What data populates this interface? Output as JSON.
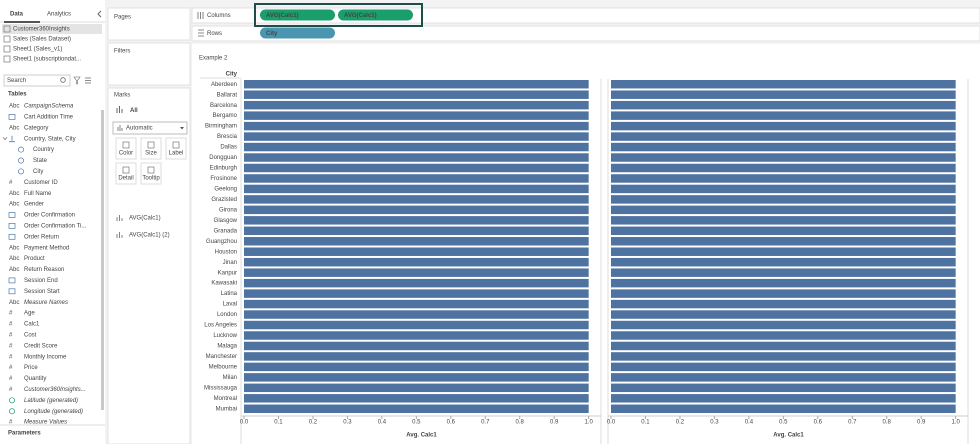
{
  "sidebar": {
    "tabs": [
      "Data",
      "Analytics"
    ],
    "sources": [
      "Customer360Insights",
      "Sales (Sales Dataset)",
      "Sheet1 (Sales_v1)",
      "Sheet1 (subscriptiondat..."
    ],
    "search": "Search",
    "tables_title": "Tables",
    "fields": [
      {
        "icon": "Abc",
        "name": "CampaignSchema",
        "italic": true
      },
      {
        "kind": "date",
        "name": "Cart Addition Time"
      },
      {
        "icon": "Abc",
        "name": "Category"
      },
      {
        "kind": "hier",
        "name": "Country, State, City"
      },
      {
        "kind": "geo",
        "name": "Country",
        "indent": true
      },
      {
        "kind": "geo",
        "name": "State",
        "indent": true
      },
      {
        "kind": "geo",
        "name": "City",
        "indent": true
      },
      {
        "icon": "#",
        "name": "Customer ID"
      },
      {
        "icon": "Abc",
        "name": "Full Name"
      },
      {
        "icon": "Abc",
        "name": "Gender"
      },
      {
        "kind": "date",
        "name": "Order Confirmation"
      },
      {
        "kind": "date",
        "name": "Order Confirmation Ti..."
      },
      {
        "kind": "date",
        "name": "Order Return"
      },
      {
        "icon": "Abc",
        "name": "Payment Method"
      },
      {
        "icon": "Abc",
        "name": "Product"
      },
      {
        "icon": "Abc",
        "name": "Return Reason"
      },
      {
        "kind": "date",
        "name": "Session End"
      },
      {
        "kind": "date",
        "name": "Session Start"
      },
      {
        "icon": "Abc",
        "name": "Measure Names",
        "italic": true
      },
      {
        "icon": "#",
        "name": "Age"
      },
      {
        "icon": "#",
        "name": "Calc1"
      },
      {
        "icon": "#",
        "name": "Cost"
      },
      {
        "icon": "#",
        "name": "Credit Score"
      },
      {
        "icon": "#",
        "name": "Monthly Income"
      },
      {
        "icon": "#",
        "name": "Price"
      },
      {
        "icon": "#",
        "name": "Quantity"
      },
      {
        "icon": "#",
        "name": "Customer360Insights...",
        "italic": true
      },
      {
        "kind": "geo",
        "name": "Latitude (generated)",
        "italic": true
      },
      {
        "kind": "geo",
        "name": "Longitude (generated)",
        "italic": true
      },
      {
        "icon": "#",
        "name": "Measure Values",
        "italic": true
      }
    ],
    "parameters_title": "Parameters"
  },
  "cards": {
    "pages": "Pages",
    "filters": "Filters",
    "marks": "Marks",
    "all": "All",
    "mark_type": "Automatic",
    "buttons": [
      "Color",
      "Size",
      "Label",
      "Detail",
      "Tooltip"
    ]
  },
  "shelves": {
    "columns": "Columns",
    "column_pills": [
      "AVG(Calc1)",
      "AVG(Calc1)"
    ],
    "rows": "Rows",
    "row_pills": [
      "City"
    ]
  },
  "sheet_title": "Example 2",
  "chart_data": {
    "type": "bar",
    "orientation": "horizontal",
    "row_header": "City",
    "categories": [
      "Aberdeen",
      "Ballarat",
      "Barcelona",
      "Bergamo",
      "Birmingham",
      "Brescia",
      "Dallas",
      "Dongguan",
      "Edinburgh",
      "Frosinone",
      "Geelong",
      "Grazlsted",
      "Girona",
      "Glasgow",
      "Granada",
      "Guangzhou",
      "Houston",
      "Jinan",
      "Kanpur",
      "Kawasaki",
      "Latina",
      "Laval",
      "London",
      "Los Angeles",
      "Lucknow",
      "Malaga",
      "Manchester",
      "Melbourne",
      "Milan",
      "Mississauga",
      "Montreal",
      "Mumbai"
    ],
    "series": [
      {
        "name": "AVG(Calc1)",
        "color": "#4e73a0",
        "values": [
          1,
          1,
          1,
          1,
          1,
          1,
          1,
          1,
          1,
          1,
          1,
          1,
          1,
          1,
          1,
          1,
          1,
          1,
          1,
          1,
          1,
          1,
          1,
          1,
          1,
          1,
          1,
          1,
          1,
          1,
          1,
          1
        ]
      },
      {
        "name": "AVG(Calc1) (2)",
        "color": "#4e73a0",
        "values": [
          1,
          1,
          1,
          1,
          1,
          1,
          1,
          1,
          1,
          1,
          1,
          1,
          1,
          1,
          1,
          1,
          1,
          1,
          1,
          1,
          1,
          1,
          1,
          1,
          1,
          1,
          1,
          1,
          1,
          1,
          1,
          1
        ]
      }
    ],
    "xlabel": "Avg. Calc1",
    "xlim": [
      0,
      1.03
    ],
    "xticks": [
      {
        "value": 0,
        "label": "0.0"
      },
      0.1,
      0.2,
      0.3,
      0.4,
      0.5,
      0.6,
      0.7,
      0.8,
      0.9,
      {
        "value": 1,
        "label": "1.0"
      }
    ]
  }
}
